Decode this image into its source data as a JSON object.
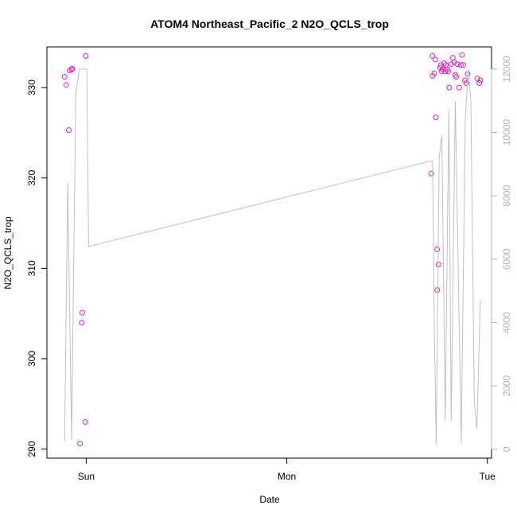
{
  "chart_data": {
    "type": "scatter",
    "title": "ATOM4 Northeast_Pacific_2 N2O_QCLS_trop",
    "xlabel": "Date",
    "ylabel": "N2O_QCLS_trop",
    "x_ticks": [
      {
        "label": "Sun",
        "day": 0
      },
      {
        "label": "Mon",
        "day": 1
      },
      {
        "label": "Tue",
        "day": 2
      }
    ],
    "xlim_day": [
      -0.196,
      2.021
    ],
    "ylim": [
      289,
      334.5
    ],
    "y_ticks": [
      290,
      300,
      310,
      320,
      330
    ],
    "y2lim": [
      -280,
      12700
    ],
    "y2_ticks": [
      0,
      2000,
      4000,
      6000,
      8000,
      10000,
      12000
    ],
    "grid": false,
    "series": [
      {
        "kind": "points",
        "axis": "left",
        "color": "#e01fbf",
        "x_day": [
          -0.108,
          -0.1,
          -0.087,
          -0.083,
          -0.073,
          -0.069,
          -0.031,
          -0.022,
          -0.02,
          -0.005,
          -0.003,
          1.72,
          1.727,
          1.727,
          1.735,
          1.74,
          1.743,
          1.75,
          1.75,
          1.756,
          1.765,
          1.768,
          1.772,
          1.777,
          1.785,
          1.79,
          1.793,
          1.8,
          1.805,
          1.81,
          1.82,
          1.828,
          1.835,
          1.84,
          1.845,
          1.85,
          1.86,
          1.868,
          1.874,
          1.88,
          1.888,
          1.895,
          1.902,
          1.95,
          1.96,
          1.965
        ],
        "y": [
          331.2,
          330.3,
          325.3,
          331.9,
          332.0,
          332.1,
          290.6,
          304.0,
          305.1,
          293.0,
          333.5,
          320.5,
          333.5,
          331.3,
          331.6,
          333.1,
          326.7,
          312.1,
          307.6,
          310.4,
          332.2,
          332.5,
          331.8,
          332.0,
          332.7,
          331.8,
          332.5,
          332.0,
          331.8,
          330.0,
          332.6,
          333.3,
          332.8,
          331.4,
          331.2,
          332.6,
          330.0,
          332.5,
          333.6,
          332.5,
          330.8,
          330.5,
          331.5,
          331.0,
          330.5,
          330.8
        ]
      },
      {
        "kind": "line",
        "axis": "right",
        "color": "#c0c0c0",
        "x_day": [
          -0.108,
          -0.092,
          -0.073,
          -0.052,
          -0.035,
          -0.028,
          0.003,
          0.012,
          1.72,
          1.727,
          1.735,
          1.745,
          1.76,
          1.773,
          1.79,
          1.808,
          1.82,
          1.84,
          1.87,
          1.89,
          1.905,
          1.918,
          1.935,
          1.948,
          1.965
        ],
        "y2": [
          250,
          8400,
          300,
          11200,
          12000,
          12000,
          12000,
          6400,
          9100,
          9100,
          4100,
          150,
          9200,
          9900,
          900,
          10700,
          900,
          11000,
          200,
          10400,
          12000,
          11000,
          1500,
          650,
          4700
        ]
      }
    ]
  }
}
